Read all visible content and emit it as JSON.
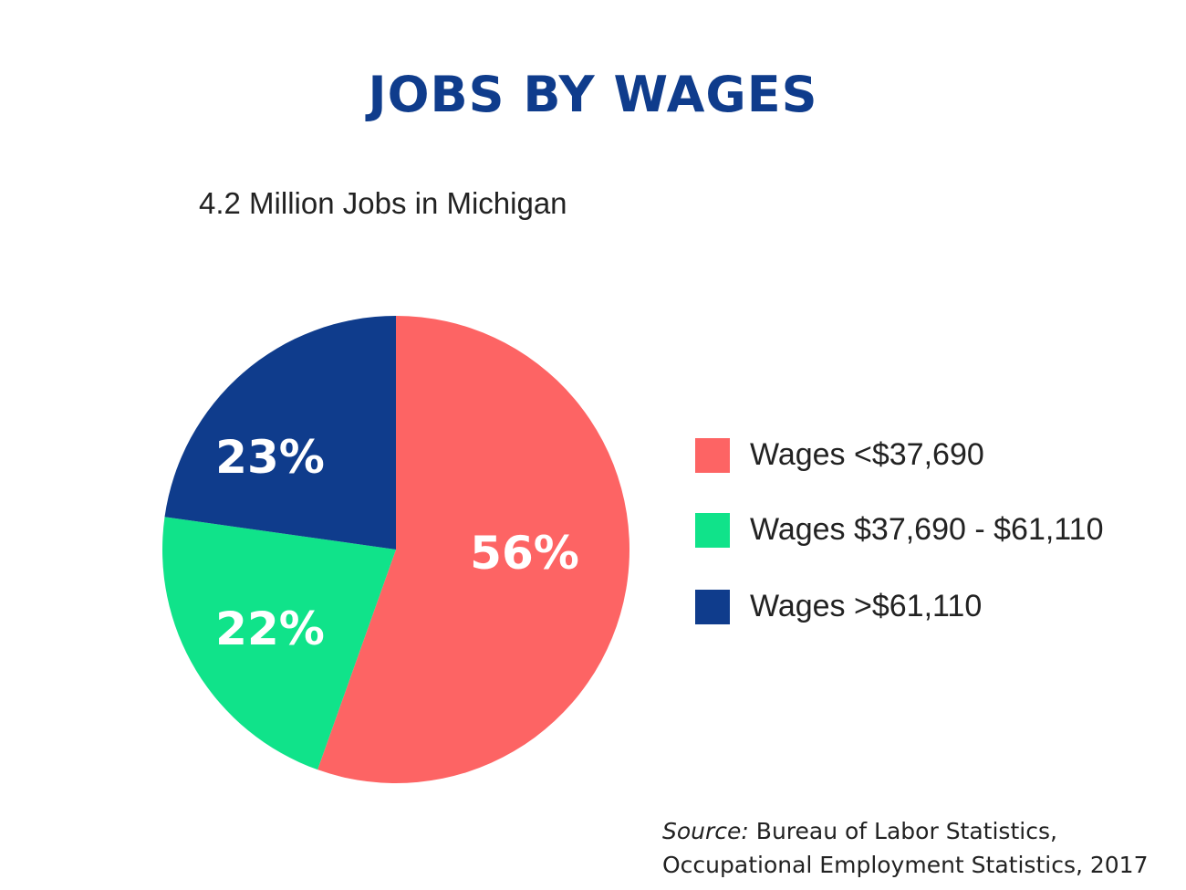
{
  "chart_data": {
    "type": "pie",
    "title": "JOBS BY WAGES",
    "subtitle": "4.2 Million Jobs in Michigan",
    "slices": [
      {
        "label": "Wages <$37,690",
        "value": 56,
        "display": "56%",
        "color": "#fd6464"
      },
      {
        "label": "Wages $37,690 - $61,110",
        "value": 22,
        "display": "22%",
        "color": "#10e38a"
      },
      {
        "label": "Wages >$61,110",
        "value": 23,
        "display": "23%",
        "color": "#0f3c8c"
      }
    ],
    "legend_position": "right",
    "source": {
      "prefix": "Source:",
      "text": " Bureau of Labor Statistics,",
      "line2": "Occupational Employment Statistics, 2017"
    }
  }
}
